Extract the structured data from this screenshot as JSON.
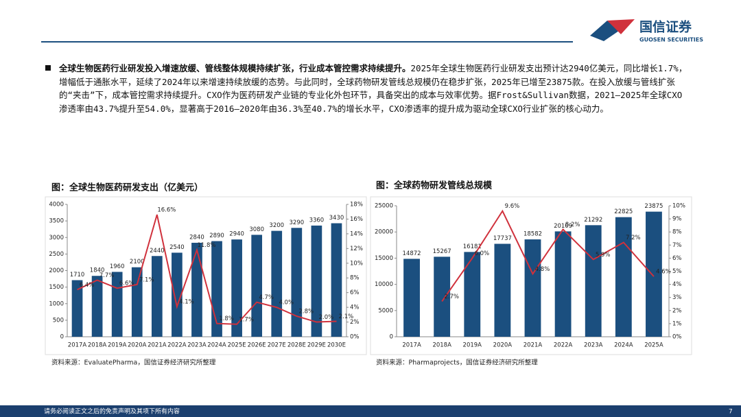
{
  "header": {
    "logo_cn": "国信证券",
    "logo_en": "GUOSEN SECURITIES"
  },
  "paragraph": {
    "bold": "全球生物医药行业研发投入增速放缓、管线整体规模持续扩张，行业成本管控需求持续提升。",
    "text": "2025年全球生物医药行业研发支出预计达2940亿美元，同比增长1.7%，增幅低于通胀水平，延续了2024年以来增速持续放缓的态势。与此同时，全球药物研发管线总规模仍在稳步扩张，2025年已增至23875款。在投入放缓与管线扩张的“夹击”下，成本管控需求持续提升。CXO作为医药研发产业链的专业化外包环节，具备突出的成本与效率优势。据Frost&Sullivan数据，2021—2025年全球CXO渗透率由43.7%提升至54.0%，显著高于2016—2020年由36.3%至40.7%的增长水平，CXO渗透率的提升成为驱动全球CXO行业扩张的核心动力。"
  },
  "chart_data": [
    {
      "type": "combo",
      "title": "图：全球生物医药研发支出（亿美元）",
      "source": "资料来源：EvaluatePharma，国信证券经济研究所整理",
      "categories": [
        "2017A",
        "2018A",
        "2019A",
        "2020A",
        "2021A",
        "2022A",
        "2023A",
        "2024A",
        "2025E",
        "2026E",
        "2027E",
        "2028E",
        "2029E",
        "2030E"
      ],
      "series": [
        {
          "type": "bar",
          "color": "#1b4f7f",
          "values": [
            1710,
            1840,
            1960,
            2100,
            2440,
            2540,
            2840,
            2890,
            2940,
            3080,
            3200,
            3290,
            3360,
            3430
          ]
        },
        {
          "type": "line",
          "color": "#d0313c",
          "axis": "y2",
          "values": [
            6.4,
            7.7,
            6.6,
            7.1,
            16.6,
            4.1,
            11.8,
            1.8,
            1.7,
            4.7,
            4.0,
            2.8,
            2.0,
            2.1
          ],
          "value_labels": [
            "6.4%",
            "7.7%",
            "6.6%",
            "7.1%",
            "16.6%",
            "4.1%",
            "11.8%",
            "1.8%",
            "1.7%",
            "4.7%",
            "4.0%",
            "2.8%",
            "2.0%",
            "2.1%"
          ]
        }
      ],
      "ylim": [
        0,
        4000
      ],
      "yticks": [
        0,
        500,
        1000,
        1500,
        2000,
        2500,
        3000,
        3500,
        4000
      ],
      "y2lim": [
        0,
        18
      ],
      "y2ticks": [
        {
          "value": 0,
          "label": "0%"
        },
        {
          "value": 2,
          "label": "2%"
        },
        {
          "value": 4,
          "label": "4%"
        },
        {
          "value": 6,
          "label": "6%"
        },
        {
          "value": 8,
          "label": "8%"
        },
        {
          "value": 10,
          "label": "10%"
        },
        {
          "value": 12,
          "label": "12%"
        },
        {
          "value": 14,
          "label": "14%"
        },
        {
          "value": 16,
          "label": "16%"
        },
        {
          "value": 18,
          "label": "18%"
        }
      ]
    },
    {
      "type": "combo",
      "title": "图：全球药物研发管线总规模",
      "source": "资料来源：Pharmaprojects，国信证券经济研究所整理",
      "categories": [
        "2017A",
        "2018A",
        "2019A",
        "2020A",
        "2021A",
        "2022A",
        "2023A",
        "2024A",
        "2025A"
      ],
      "series": [
        {
          "type": "bar",
          "color": "#1b4f7f",
          "values": [
            14872,
            15267,
            16181,
            17737,
            18582,
            20109,
            21292,
            22825,
            23875
          ]
        },
        {
          "type": "line",
          "color": "#d0313c",
          "axis": "y2",
          "values": [
            null,
            2.7,
            6.0,
            9.6,
            4.8,
            8.2,
            5.9,
            7.2,
            4.6
          ],
          "value_labels": [
            null,
            "2.7%",
            "6.0%",
            "9.6%",
            "4.8%",
            "8.2%",
            "5.9%",
            "7.2%",
            "4.6%"
          ]
        }
      ],
      "ylim": [
        0,
        25000
      ],
      "yticks": [
        0,
        5000,
        10000,
        15000,
        20000,
        25000
      ],
      "y2lim": [
        0,
        10
      ],
      "y2ticks": [
        {
          "value": 0,
          "label": "0%"
        },
        {
          "value": 1,
          "label": "1%"
        },
        {
          "value": 2,
          "label": "2%"
        },
        {
          "value": 3,
          "label": "3%"
        },
        {
          "value": 4,
          "label": "4%"
        },
        {
          "value": 5,
          "label": "5%"
        },
        {
          "value": 6,
          "label": "6%"
        },
        {
          "value": 7,
          "label": "7%"
        },
        {
          "value": 8,
          "label": "8%"
        },
        {
          "value": 9,
          "label": "9%"
        },
        {
          "value": 10,
          "label": "10%"
        }
      ]
    }
  ],
  "footer": {
    "disclaimer": "请务必阅读正文之后的免责声明及其项下所有内容",
    "page": "7"
  }
}
